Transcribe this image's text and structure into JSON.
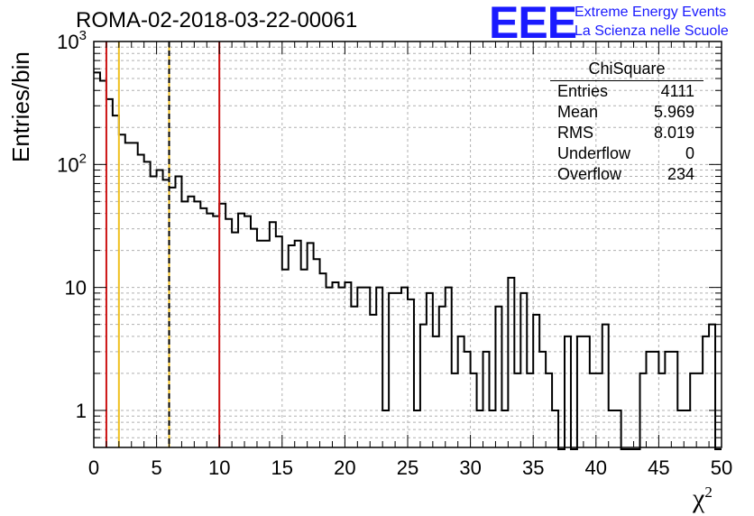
{
  "title": "ROMA-02-2018-03-22-00061",
  "logo": {
    "text": "EEE",
    "line1": "Extreme Energy Events",
    "line2": "La Scienza nelle Scuole",
    "color": "#1a1aff"
  },
  "stats": {
    "name": "ChiSquare",
    "rows": [
      {
        "label": "Entries",
        "value": "4111"
      },
      {
        "label": "Mean",
        "value": "5.969"
      },
      {
        "label": "RMS",
        "value": "8.019"
      },
      {
        "label": "Underflow",
        "value": "0"
      },
      {
        "label": "Overflow",
        "value": "234"
      }
    ]
  },
  "chart_data": {
    "type": "histogram",
    "ylabel": "Entries/bin",
    "xlabel": "χ",
    "xlabel_sup": "2",
    "xlim": [
      0,
      50
    ],
    "ylim": [
      0.5,
      1000
    ],
    "yscale": "log",
    "grid": true,
    "bin_width": 0.5,
    "x_ticks": [
      "0",
      "5",
      "10",
      "15",
      "20",
      "25",
      "30",
      "35",
      "40",
      "45",
      "50"
    ],
    "y_ticks": [
      {
        "value": 1,
        "label": "1"
      },
      {
        "value": 10,
        "label": "10"
      },
      {
        "value": 100,
        "label": "10",
        "exp": "2"
      },
      {
        "value": 1000,
        "label": "10",
        "exp": "3"
      }
    ],
    "values": [
      560,
      480,
      340,
      250,
      175,
      150,
      150,
      120,
      105,
      80,
      90,
      75,
      65,
      80,
      50,
      55,
      50,
      44,
      40,
      38,
      48,
      36,
      28,
      40,
      38,
      30,
      24,
      24,
      34,
      26,
      14,
      22,
      24,
      14,
      23,
      17,
      13,
      10,
      11,
      10,
      11,
      7,
      10,
      10,
      6,
      10,
      1,
      9,
      9,
      10,
      8,
      1,
      5,
      9,
      4,
      7,
      10,
      2,
      4,
      3,
      2,
      1,
      3,
      1,
      7,
      1,
      12,
      2,
      9,
      2,
      6,
      3,
      2,
      1,
      0,
      4,
      0,
      4,
      4,
      2,
      2,
      5,
      1,
      1,
      0,
      0,
      0,
      2,
      3,
      3,
      2,
      3,
      3,
      1,
      1,
      2,
      2,
      4,
      5,
      0
    ],
    "lines": [
      {
        "x": 1,
        "color": "#cc1111",
        "style": "solid"
      },
      {
        "x": 2,
        "color": "#f0c020",
        "style": "solid"
      },
      {
        "x": 6,
        "color": "#f0c020",
        "style": "solid"
      },
      {
        "x": 6,
        "color": "#000000",
        "style": "dashed"
      },
      {
        "x": 10,
        "color": "#cc1111",
        "style": "solid"
      }
    ]
  }
}
